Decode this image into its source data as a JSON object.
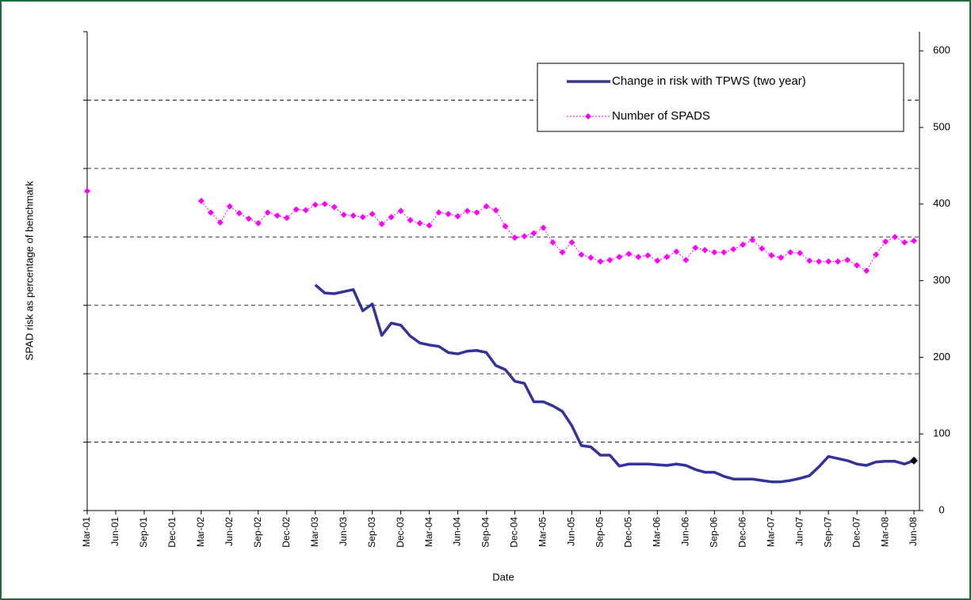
{
  "chart_data": {
    "type": "line",
    "y_axis_label": "SPAD risk as percentage of benchmark",
    "x_axis_label": "Date",
    "categories": [
      "Mar-01",
      null,
      null,
      "Jun-01",
      null,
      null,
      "Sep-01",
      null,
      null,
      "Dec-01",
      null,
      null,
      "Mar-02",
      null,
      null,
      "Jun-02",
      null,
      null,
      "Sep-02",
      null,
      null,
      "Dec-02",
      null,
      null,
      "Mar-03",
      null,
      null,
      "Jun-03",
      null,
      null,
      "Sep-03",
      null,
      null,
      "Dec-03",
      null,
      null,
      "Mar-04",
      null,
      null,
      "Jun-04",
      null,
      null,
      "Sep-04",
      null,
      null,
      "Dec-04",
      null,
      null,
      "Mar-05",
      null,
      null,
      "Jun-05",
      null,
      null,
      "Sep-05",
      null,
      null,
      "Dec-05",
      null,
      null,
      "Mar-06",
      null,
      null,
      "Jun-06",
      null,
      null,
      "Sep-06",
      null,
      null,
      "Dec-06",
      null,
      null,
      "Mar-07",
      null,
      null,
      "Jun-07",
      null,
      null,
      "Sep-07",
      null,
      null,
      "Dec-07",
      null,
      null,
      "Mar-08",
      null,
      null,
      "Jun-08"
    ],
    "series": [
      {
        "name": "Change in risk with TPWS (two year)",
        "color": "#333399",
        "end_marker_color": "#000000",
        "values": [
          null,
          null,
          null,
          null,
          null,
          null,
          null,
          null,
          null,
          null,
          null,
          null,
          null,
          null,
          null,
          null,
          null,
          null,
          null,
          null,
          null,
          null,
          null,
          null,
          330,
          318,
          317,
          320,
          323,
          292,
          302,
          256,
          274,
          271,
          255,
          245,
          242,
          240,
          231,
          229,
          233,
          234,
          231,
          212,
          206,
          189,
          186,
          159,
          159,
          153,
          145,
          124,
          95,
          93,
          81,
          81,
          65,
          68,
          68,
          68,
          67,
          66,
          68,
          66,
          60,
          56,
          56,
          50,
          46,
          46,
          46,
          44,
          42,
          42,
          44,
          47,
          51,
          64,
          79,
          76,
          73,
          68,
          66,
          71,
          72,
          72,
          68,
          73
        ]
      },
      {
        "name": "Number of SPADS",
        "color": "#ff00ff",
        "axis": "y2",
        "values": [
          417,
          null,
          null,
          null,
          null,
          null,
          null,
          null,
          null,
          null,
          null,
          null,
          404,
          389,
          376,
          397,
          388,
          381,
          375,
          389,
          385,
          382,
          393,
          392,
          399,
          400,
          396,
          386,
          385,
          383,
          387,
          374,
          383,
          391,
          379,
          375,
          372,
          389,
          387,
          384,
          391,
          389,
          397,
          392,
          371,
          356,
          358,
          362,
          369,
          350,
          337,
          350,
          334,
          330,
          325,
          327,
          331,
          335,
          331,
          333,
          326,
          331,
          338,
          327,
          343,
          340,
          337,
          337,
          341,
          347,
          353,
          342,
          333,
          330,
          337,
          336,
          326,
          325,
          325,
          325,
          327,
          320,
          313,
          334,
          351,
          357,
          350,
          352
        ]
      }
    ],
    "ylim": [
      0,
      700
    ],
    "yticks": [
      0,
      100,
      200,
      300,
      400,
      500,
      600,
      700
    ],
    "y2lim": [
      0,
      625
    ],
    "y2ticks": [
      0,
      100,
      200,
      300,
      400,
      500,
      600
    ],
    "grid": true,
    "legend": "top-right"
  }
}
